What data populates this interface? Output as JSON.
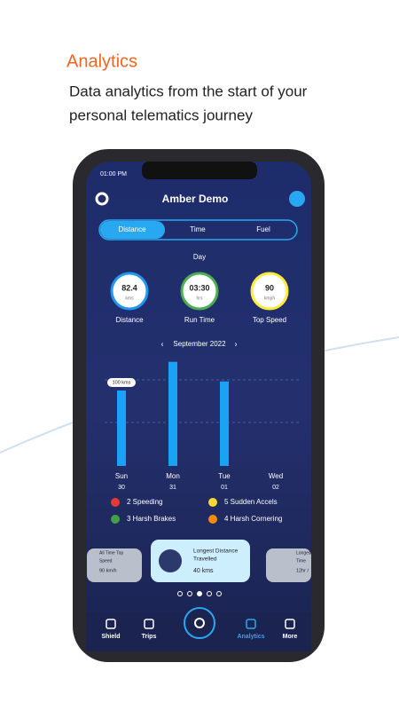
{
  "header": {
    "title": "Analytics",
    "subtitle": [
      "Data analytics from the start of your",
      "personal telematics journey"
    ]
  },
  "status": {
    "time": "01:00 PM"
  },
  "app": {
    "user": "Amber Demo",
    "tabs": [
      "Distance",
      "Time",
      "Fuel"
    ],
    "period": "Day",
    "metrics": [
      {
        "value": "82.4",
        "unit": "kms",
        "label": "Distance",
        "color": "#2196f3"
      },
      {
        "value": "03:30",
        "unit": "hrs",
        "label": "Run Time",
        "color": "#4caf50"
      },
      {
        "value": "90",
        "unit": "kmph",
        "label": "Top Speed",
        "color": "#ffeb3b"
      }
    ],
    "chart": {
      "type": "bar",
      "month": "September 2022",
      "color": "#1aa3f5",
      "categories": [
        "Sun",
        "Mon",
        "Tue",
        "Wed"
      ],
      "dates": [
        "30",
        "31",
        "01",
        "02"
      ],
      "values": [
        100,
        138,
        112,
        0
      ],
      "value_labels": [
        "100 kms",
        null,
        null,
        null
      ]
    },
    "events": [
      "2 Speeding",
      "5 Sudden Accels",
      "3 Harsh Brakes",
      "4 Harsh Cornering"
    ],
    "cards": [
      {
        "title": [
          "All Time Top",
          "Speed"
        ],
        "value": "90 km/h"
      },
      {
        "title": [
          "Longest Distance",
          "Travelled"
        ],
        "value": "40 kms"
      },
      {
        "title": [
          "Longest",
          "Time"
        ],
        "value": "12hr /"
      }
    ],
    "nav": [
      "Shield",
      "Trips",
      "Analytics",
      "More"
    ]
  }
}
